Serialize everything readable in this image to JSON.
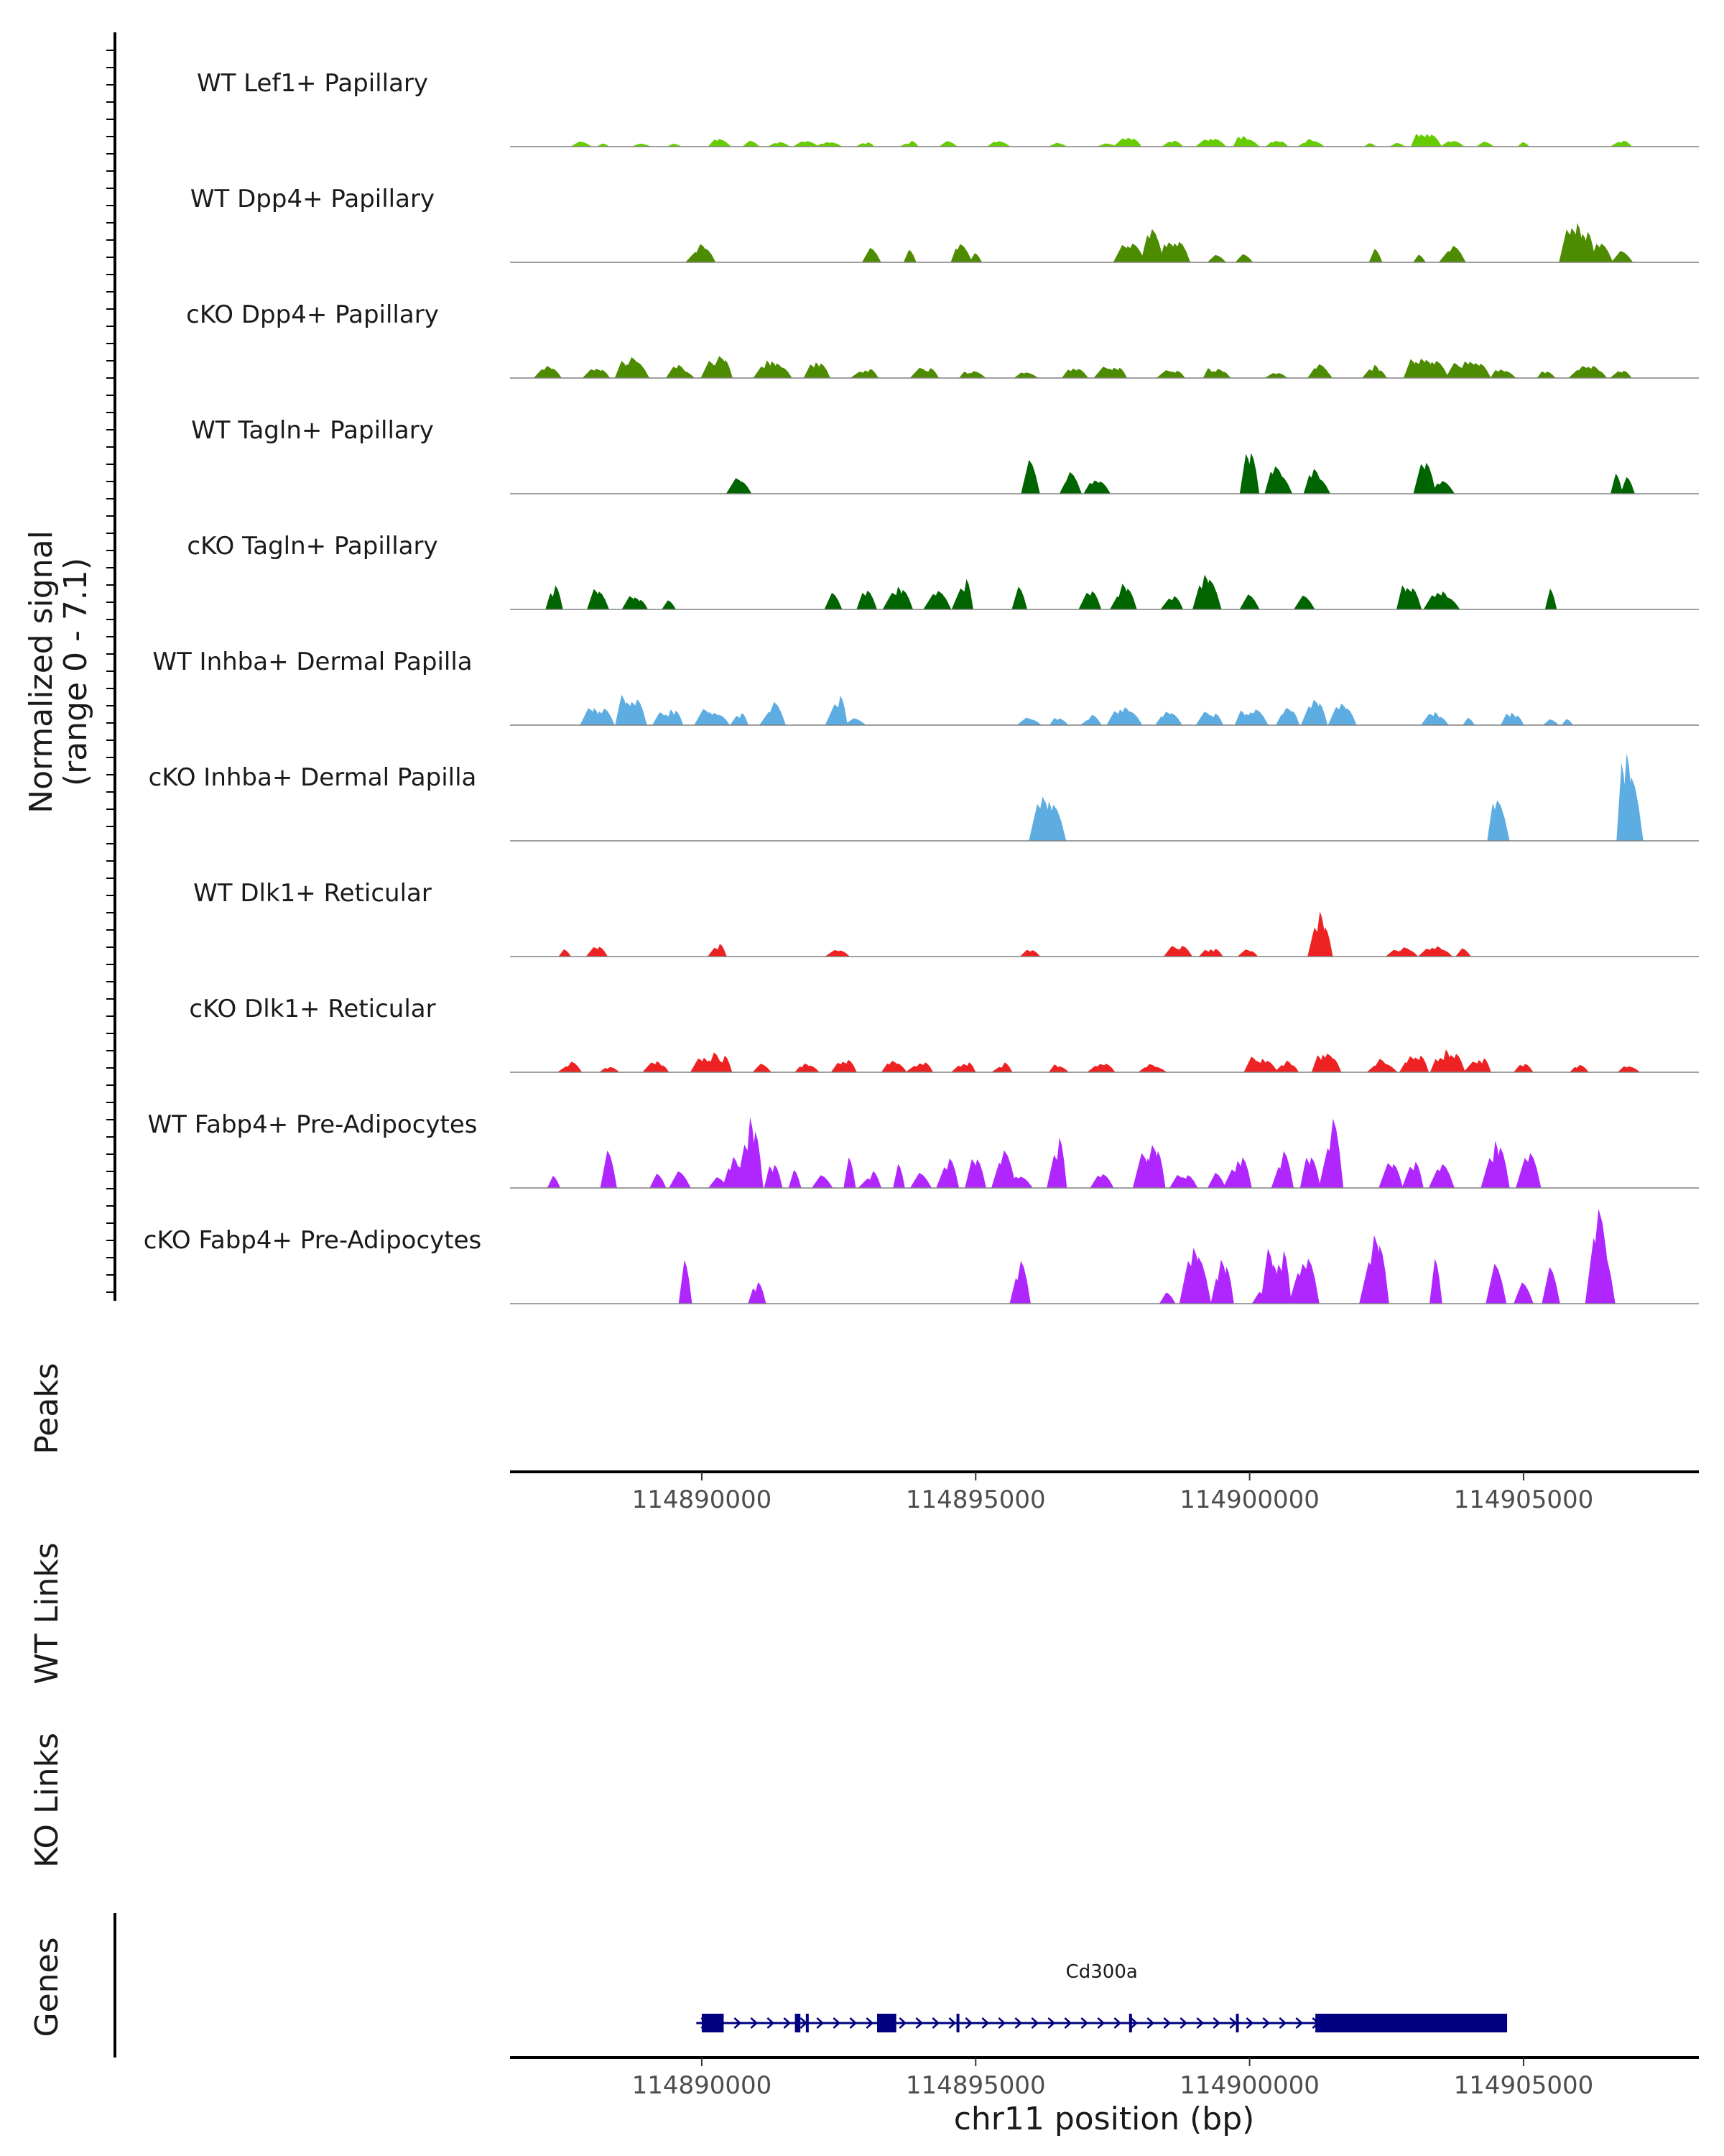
{
  "chart_data": {
    "type": "area",
    "x_unit": "bp",
    "chromosome": "chr11",
    "xlim": [
      114886500,
      114908200
    ],
    "signal_axis": {
      "title_line1": "Normalized signal",
      "title_line2": "(range 0 - 7.1)",
      "ylim": [
        0,
        7.1
      ]
    },
    "colors": {
      "light_green": "#66cc00",
      "mid_green": "#4d8c00",
      "dark_green": "#006400",
      "blue": "#5dade2",
      "red": "#ee2222",
      "purple": "#b026ff",
      "gene": "#000080",
      "baseline": "#808080"
    },
    "tracks": [
      {
        "label": "WT Lef1+ Papillary",
        "color": "#66cc00",
        "seed": 11,
        "peaks": [
          [
            114887800,
            0.4,
            1
          ],
          [
            114888200,
            0.3,
            1
          ],
          [
            114888900,
            0.3,
            1
          ],
          [
            114889500,
            0.3,
            1
          ],
          [
            114890300,
            0.6,
            2
          ],
          [
            114890900,
            0.4,
            1
          ],
          [
            114891400,
            0.4,
            2
          ],
          [
            114891900,
            0.6,
            2
          ],
          [
            114892300,
            0.4,
            3
          ],
          [
            114893000,
            0.3,
            2
          ],
          [
            114893800,
            0.4,
            2
          ],
          [
            114894500,
            0.4,
            1
          ],
          [
            114895400,
            0.4,
            2
          ],
          [
            114896500,
            0.3,
            1
          ],
          [
            114897400,
            0.3,
            1
          ],
          [
            114897800,
            0.7,
            3
          ],
          [
            114898600,
            0.6,
            2
          ],
          [
            114899300,
            0.7,
            3
          ],
          [
            114899900,
            0.8,
            3
          ],
          [
            114900500,
            0.5,
            3
          ],
          [
            114901100,
            0.5,
            3
          ],
          [
            114902200,
            0.3,
            1
          ],
          [
            114902700,
            0.3,
            1
          ],
          [
            114903200,
            1.0,
            4
          ],
          [
            114903700,
            0.5,
            2
          ],
          [
            114904300,
            0.4,
            1
          ],
          [
            114905000,
            0.3,
            1
          ],
          [
            114906800,
            0.5,
            2
          ]
        ]
      },
      {
        "label": "WT Dpp4+ Papillary",
        "color": "#4d8c00",
        "seed": 23,
        "peaks": [
          [
            114890000,
            1.3,
            3
          ],
          [
            114893100,
            1.2,
            1
          ],
          [
            114893800,
            1.1,
            1
          ],
          [
            114894700,
            1.3,
            2
          ],
          [
            114895000,
            0.7,
            1
          ],
          [
            114897800,
            1.5,
            3
          ],
          [
            114898200,
            3.0,
            2
          ],
          [
            114898600,
            1.8,
            4
          ],
          [
            114899400,
            0.8,
            1
          ],
          [
            114899900,
            0.7,
            1
          ],
          [
            114902300,
            0.9,
            1
          ],
          [
            114903100,
            0.9,
            1
          ],
          [
            114903700,
            1.4,
            2
          ],
          [
            114906000,
            3.0,
            5
          ],
          [
            114906400,
            1.5,
            2
          ],
          [
            114906800,
            0.8,
            1
          ]
        ]
      },
      {
        "label": "cKO Dpp4+ Papillary",
        "color": "#4d8c00",
        "seed": 37,
        "peaks": [
          [
            114887200,
            0.8,
            3
          ],
          [
            114888100,
            0.7,
            3
          ],
          [
            114888700,
            1.4,
            4
          ],
          [
            114889600,
            1.0,
            3
          ],
          [
            114890300,
            1.5,
            4
          ],
          [
            114891300,
            1.5,
            5
          ],
          [
            114892100,
            1.2,
            3
          ],
          [
            114893000,
            0.8,
            3
          ],
          [
            114894100,
            0.8,
            3
          ],
          [
            114894900,
            0.6,
            3
          ],
          [
            114895900,
            0.6,
            2
          ],
          [
            114896800,
            0.8,
            3
          ],
          [
            114897500,
            1.0,
            4
          ],
          [
            114898600,
            0.8,
            3
          ],
          [
            114899400,
            0.8,
            4
          ],
          [
            114900500,
            0.5,
            2
          ],
          [
            114901300,
            1.0,
            3
          ],
          [
            114902300,
            1.0,
            3
          ],
          [
            114903200,
            1.6,
            6
          ],
          [
            114904000,
            1.5,
            6
          ],
          [
            114904600,
            0.9,
            3
          ],
          [
            114905400,
            0.6,
            2
          ],
          [
            114906200,
            1.0,
            5
          ],
          [
            114906800,
            0.6,
            2
          ]
        ]
      },
      {
        "label": "WT Tagln+ Papillary",
        "color": "#006400",
        "seed": 41,
        "peaks": [
          [
            114890700,
            1.3,
            2
          ],
          [
            114896000,
            2.7,
            1
          ],
          [
            114896700,
            1.5,
            2
          ],
          [
            114897200,
            1.4,
            3
          ],
          [
            114900000,
            3.5,
            2
          ],
          [
            114900500,
            2.0,
            3
          ],
          [
            114901200,
            2.0,
            3
          ],
          [
            114903200,
            2.6,
            2
          ],
          [
            114903500,
            1.4,
            2
          ],
          [
            114906700,
            1.4,
            1
          ],
          [
            114906900,
            1.4,
            1
          ]
        ]
      },
      {
        "label": "cKO Tagln+ Papillary",
        "color": "#006400",
        "seed": 53,
        "peaks": [
          [
            114887300,
            1.8,
            2
          ],
          [
            114888100,
            1.6,
            2
          ],
          [
            114888800,
            1.3,
            3
          ],
          [
            114889400,
            0.7,
            1
          ],
          [
            114892400,
            1.9,
            1
          ],
          [
            114893000,
            1.6,
            2
          ],
          [
            114893600,
            2.2,
            3
          ],
          [
            114894300,
            1.5,
            2
          ],
          [
            114894800,
            2.2,
            2
          ],
          [
            114895800,
            1.7,
            1
          ],
          [
            114897100,
            2.0,
            2
          ],
          [
            114897700,
            1.7,
            3
          ],
          [
            114898600,
            1.5,
            2
          ],
          [
            114899200,
            2.5,
            3
          ],
          [
            114900000,
            1.7,
            1
          ],
          [
            114901000,
            1.0,
            1
          ],
          [
            114902900,
            2.3,
            3
          ],
          [
            114903500,
            1.3,
            4
          ],
          [
            114905500,
            1.4,
            1
          ]
        ]
      },
      {
        "label": "WT Inhba+ Dermal Papilla",
        "color": "#5dade2",
        "seed": 67,
        "peaks": [
          [
            114888100,
            1.4,
            4
          ],
          [
            114888700,
            2.6,
            4
          ],
          [
            114889400,
            1.5,
            4
          ],
          [
            114890200,
            1.3,
            4
          ],
          [
            114890700,
            0.9,
            2
          ],
          [
            114891300,
            1.8,
            2
          ],
          [
            114892500,
            2.0,
            2
          ],
          [
            114892800,
            0.7,
            1
          ],
          [
            114896000,
            0.6,
            2
          ],
          [
            114896500,
            0.7,
            2
          ],
          [
            114897100,
            0.7,
            2
          ],
          [
            114897700,
            1.3,
            4
          ],
          [
            114898500,
            1.2,
            3
          ],
          [
            114899300,
            1.1,
            3
          ],
          [
            114900000,
            1.3,
            4
          ],
          [
            114900700,
            1.3,
            3
          ],
          [
            114901200,
            2.2,
            3
          ],
          [
            114901700,
            1.6,
            3
          ],
          [
            114903400,
            0.9,
            3
          ],
          [
            114904000,
            0.7,
            1
          ],
          [
            114904800,
            1.3,
            3
          ],
          [
            114905500,
            0.6,
            1
          ],
          [
            114905800,
            0.6,
            1
          ]
        ]
      },
      {
        "label": "cKO Inhba+ Dermal Papilla",
        "color": "#5dade2",
        "seed": 79,
        "peaks": [
          [
            114896200,
            4.0,
            2
          ],
          [
            114896400,
            3.8,
            2
          ],
          [
            114904500,
            3.9,
            2
          ],
          [
            114906900,
            6.1,
            3
          ]
        ]
      },
      {
        "label": "WT Dlk1+ Reticular",
        "color": "#ee2222",
        "seed": 83,
        "peaks": [
          [
            114887500,
            0.6,
            1
          ],
          [
            114888100,
            0.9,
            2
          ],
          [
            114890300,
            1.0,
            2
          ],
          [
            114892500,
            0.6,
            2
          ],
          [
            114896000,
            0.6,
            2
          ],
          [
            114898700,
            0.9,
            3
          ],
          [
            114899300,
            0.8,
            3
          ],
          [
            114900000,
            0.6,
            2
          ],
          [
            114901300,
            3.0,
            3
          ],
          [
            114902800,
            0.8,
            4
          ],
          [
            114903400,
            0.9,
            4
          ],
          [
            114903900,
            0.6,
            1
          ]
        ]
      },
      {
        "label": "cKO Dlk1+ Reticular",
        "color": "#ee2222",
        "seed": 97,
        "peaks": [
          [
            114887600,
            0.8,
            2
          ],
          [
            114888300,
            0.4,
            2
          ],
          [
            114889200,
            0.8,
            3
          ],
          [
            114890200,
            1.4,
            6
          ],
          [
            114891100,
            0.8,
            1
          ],
          [
            114891900,
            0.8,
            3
          ],
          [
            114892600,
            1.0,
            3
          ],
          [
            114893500,
            0.8,
            3
          ],
          [
            114894000,
            0.8,
            3
          ],
          [
            114894800,
            0.8,
            3
          ],
          [
            114895500,
            0.7,
            2
          ],
          [
            114896500,
            0.6,
            2
          ],
          [
            114897300,
            0.7,
            3
          ],
          [
            114898200,
            0.6,
            3
          ],
          [
            114900200,
            1.4,
            4
          ],
          [
            114900700,
            1.0,
            3
          ],
          [
            114901400,
            1.6,
            4
          ],
          [
            114902400,
            0.9,
            3
          ],
          [
            114903000,
            1.4,
            4
          ],
          [
            114903600,
            1.6,
            5
          ],
          [
            114904200,
            1.1,
            3
          ],
          [
            114905000,
            0.6,
            2
          ],
          [
            114906000,
            0.6,
            2
          ],
          [
            114906900,
            0.7,
            2
          ]
        ]
      },
      {
        "label": "WT Fabp4+ Pre-Adipocytes",
        "color": "#b026ff",
        "seed": 101,
        "peaks": [
          [
            114887300,
            1.2,
            1
          ],
          [
            114888300,
            2.6,
            1
          ],
          [
            114889200,
            1.3,
            1
          ],
          [
            114889600,
            1.2,
            1
          ],
          [
            114890300,
            1.2,
            1
          ],
          [
            114890600,
            2.5,
            3
          ],
          [
            114890900,
            4.8,
            3
          ],
          [
            114891300,
            2.5,
            2
          ],
          [
            114891700,
            1.2,
            1
          ],
          [
            114892200,
            1.2,
            1
          ],
          [
            114892700,
            2.5,
            1
          ],
          [
            114893100,
            1.2,
            2
          ],
          [
            114893600,
            2.0,
            1
          ],
          [
            114894000,
            1.2,
            1
          ],
          [
            114894500,
            2.7,
            2
          ],
          [
            114895000,
            2.5,
            2
          ],
          [
            114895500,
            2.6,
            2
          ],
          [
            114895800,
            1.3,
            2
          ],
          [
            114896500,
            3.6,
            2
          ],
          [
            114897300,
            1.2,
            2
          ],
          [
            114898200,
            3.5,
            4
          ],
          [
            114898800,
            1.3,
            3
          ],
          [
            114899400,
            1.2,
            1
          ],
          [
            114899800,
            2.4,
            3
          ],
          [
            114900600,
            2.6,
            2
          ],
          [
            114901100,
            2.5,
            2
          ],
          [
            114901500,
            5.5,
            2
          ],
          [
            114902600,
            2.3,
            2
          ],
          [
            114903000,
            2.0,
            2
          ],
          [
            114903500,
            2.6,
            2
          ],
          [
            114904500,
            4.0,
            3
          ],
          [
            114905100,
            3.9,
            2
          ]
        ]
      },
      {
        "label": "cKO Fabp4+ Pre-Adipocytes",
        "color": "#b026ff",
        "seed": 113,
        "peaks": [
          [
            114889700,
            3.3,
            1
          ],
          [
            114891000,
            1.6,
            2
          ],
          [
            114895800,
            3.2,
            2
          ],
          [
            114898500,
            1.2,
            1
          ],
          [
            114899000,
            4.3,
            3
          ],
          [
            114899500,
            3.5,
            3
          ],
          [
            114900200,
            1.3,
            1
          ],
          [
            114900500,
            4.5,
            4
          ],
          [
            114901000,
            4.0,
            3
          ],
          [
            114902300,
            4.6,
            3
          ],
          [
            114903400,
            4.2,
            1
          ],
          [
            114904500,
            3.3,
            1
          ],
          [
            114905000,
            1.5,
            1
          ],
          [
            114905500,
            3.2,
            1
          ],
          [
            114906400,
            7.1,
            3
          ]
        ]
      }
    ],
    "panels": {
      "peaks": "Peaks",
      "wt_links": "WT Links",
      "ko_links": "KO Links",
      "genes": "Genes"
    },
    "x_ticks": [
      {
        "value": 114890000,
        "label": "114890000"
      },
      {
        "value": 114895000,
        "label": "114895000"
      },
      {
        "value": 114900000,
        "label": "114900000"
      },
      {
        "value": 114905000,
        "label": "114905000"
      }
    ],
    "xlabel": "chr11 position (bp)",
    "gene": {
      "name": "Cd300a",
      "start": 114889900,
      "end": 114904700,
      "strand": "+",
      "exons": [
        [
          114890000,
          114890400
        ],
        [
          114891700,
          114891800
        ],
        [
          114891900,
          114891950
        ],
        [
          114893200,
          114893550
        ],
        [
          114894650,
          114894700
        ],
        [
          114897800,
          114897850
        ],
        [
          114899750,
          114899800
        ],
        [
          114901200,
          114904700
        ]
      ]
    }
  }
}
